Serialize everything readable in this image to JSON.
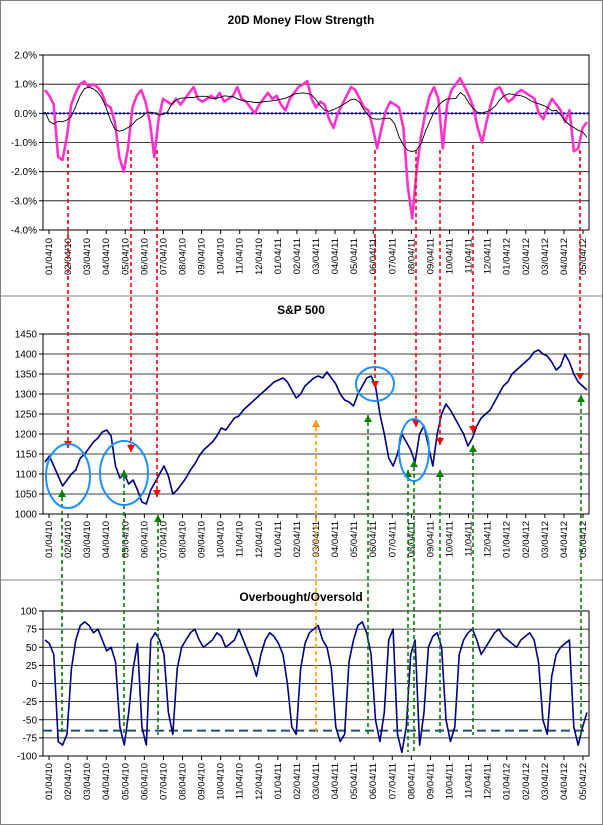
{
  "chart_data": [
    {
      "type": "line",
      "title": "20D Money Flow Strength",
      "ylim": [
        -4.0,
        2.0
      ],
      "y_ticks": [
        "2.0%",
        "1.0%",
        "0.0%",
        "-1.0%",
        "-2.0%",
        "-3.0%",
        "-4.0%"
      ],
      "x_ticks": [
        "01/04/10",
        "02/04/10",
        "03/04/10",
        "04/04/10",
        "05/04/10",
        "06/04/10",
        "07/04/10",
        "08/04/10",
        "09/04/10",
        "10/04/10",
        "11/04/10",
        "12/04/10",
        "01/04/11",
        "02/04/11",
        "03/04/11",
        "04/04/11",
        "05/04/11",
        "06/04/11",
        "07/04/11",
        "08/04/11",
        "09/04/11",
        "10/04/11",
        "11/04/11",
        "12/04/11",
        "01/04/12",
        "02/04/12",
        "03/04/12",
        "04/04/12",
        "05/04/12"
      ],
      "zero_line": 0.0,
      "series": [
        {
          "color": "#ff33cc",
          "values": [
            0.8,
            0.6,
            0.3,
            -1.5,
            -1.6,
            -0.8,
            0.3,
            0.7,
            1.0,
            1.1,
            0.9,
            1.0,
            0.9,
            0.7,
            0.3,
            0.2,
            -0.3,
            -1.5,
            -2.0,
            -1.2,
            0.2,
            0.6,
            0.8,
            0.4,
            -0.3,
            -1.5,
            -0.2,
            0.5,
            0.4,
            0.3,
            0.5,
            0.3,
            0.5,
            0.7,
            0.9,
            0.5,
            0.4,
            0.5,
            0.6,
            0.5,
            0.7,
            0.4,
            0.5,
            0.6,
            0.9,
            0.5,
            0.4,
            0.2,
            0.0,
            0.3,
            0.5,
            0.7,
            0.5,
            0.6,
            0.3,
            0.1,
            0.5,
            0.7,
            0.9,
            1.0,
            1.1,
            0.5,
            0.2,
            0.4,
            0.3,
            -0.2,
            -0.5,
            0.0,
            0.3,
            0.6,
            0.9,
            0.8,
            0.5,
            0.2,
            0.1,
            -0.5,
            -1.2,
            -0.5,
            0.1,
            0.4,
            0.3,
            0.2,
            -0.5,
            -2.5,
            -3.6,
            -2.0,
            -0.8,
            0.0,
            0.6,
            0.9,
            0.5,
            -1.2,
            0.3,
            0.8,
            1.0,
            1.2,
            0.9,
            0.6,
            0.2,
            -0.5,
            -1.0,
            -0.3,
            0.3,
            0.8,
            0.9,
            0.6,
            0.4,
            0.5,
            0.7,
            0.8,
            0.7,
            0.6,
            0.5,
            0.0,
            -0.2,
            0.2,
            0.5,
            0.3,
            0.1,
            -0.3,
            0.1,
            -1.3,
            -1.2,
            -0.5,
            -0.3
          ]
        }
      ]
    },
    {
      "type": "line",
      "title": "S&P 500",
      "ylim": [
        1000,
        1450
      ],
      "y_ticks": [
        "1450",
        "1400",
        "1350",
        "1300",
        "1250",
        "1200",
        "1150",
        "1100",
        "1050",
        "1000"
      ],
      "x_ticks": [
        "01/04/10",
        "02/04/10",
        "03/04/10",
        "04/04/10",
        "05/04/10",
        "06/04/10",
        "07/04/10",
        "08/04/10",
        "09/04/10",
        "10/04/10",
        "11/04/10",
        "12/04/10",
        "01/04/11",
        "02/04/11",
        "03/04/11",
        "04/04/11",
        "05/04/11",
        "06/04/11",
        "07/04/11",
        "08/04/11",
        "09/04/11",
        "10/04/11",
        "11/04/11",
        "12/04/11",
        "01/04/12",
        "02/04/12",
        "03/04/12",
        "04/04/12",
        "05/04/12"
      ],
      "series": [
        {
          "color": "#000080",
          "values": [
            1130,
            1145,
            1120,
            1095,
            1070,
            1085,
            1100,
            1110,
            1140,
            1150,
            1165,
            1180,
            1190,
            1205,
            1210,
            1195,
            1120,
            1090,
            1100,
            1075,
            1085,
            1060,
            1030,
            1025,
            1060,
            1080,
            1100,
            1120,
            1095,
            1050,
            1060,
            1075,
            1090,
            1110,
            1125,
            1145,
            1160,
            1170,
            1180,
            1195,
            1215,
            1210,
            1225,
            1240,
            1245,
            1260,
            1270,
            1280,
            1290,
            1300,
            1310,
            1320,
            1330,
            1335,
            1340,
            1330,
            1310,
            1290,
            1300,
            1320,
            1330,
            1340,
            1345,
            1340,
            1355,
            1340,
            1325,
            1300,
            1285,
            1280,
            1270,
            1300,
            1320,
            1340,
            1345,
            1320,
            1250,
            1200,
            1140,
            1120,
            1150,
            1200,
            1180,
            1160,
            1130,
            1200,
            1220,
            1170,
            1120,
            1200,
            1250,
            1275,
            1260,
            1240,
            1220,
            1200,
            1170,
            1190,
            1220,
            1240,
            1250,
            1260,
            1280,
            1300,
            1320,
            1330,
            1350,
            1360,
            1370,
            1380,
            1390,
            1405,
            1410,
            1400,
            1395,
            1380,
            1360,
            1370,
            1400,
            1380,
            1350,
            1330,
            1320,
            1310
          ]
        }
      ]
    },
    {
      "type": "line",
      "title": "Overbought/Oversold",
      "ylim": [
        -100,
        100
      ],
      "y_ticks": [
        "100",
        "75",
        "50",
        "25",
        "0",
        "-25",
        "-50",
        "-75",
        "-100"
      ],
      "x_ticks": [
        "01/04/10",
        "02/04/10",
        "03/04/10",
        "04/04/10",
        "05/04/10",
        "06/04/10",
        "07/04/10",
        "08/04/10",
        "09/04/10",
        "10/04/10",
        "11/04/10",
        "12/04/10",
        "01/04/11",
        "02/04/11",
        "03/04/11",
        "04/04/11",
        "05/04/11",
        "06/04/11",
        "07/04/11",
        "08/04/11",
        "09/04/11",
        "10/04/11",
        "11/04/11",
        "12/04/11",
        "01/04/12",
        "02/04/12",
        "03/04/12",
        "04/04/12",
        "05/04/12"
      ],
      "threshold": -65,
      "series": [
        {
          "color": "#000080",
          "values": [
            60,
            55,
            40,
            -80,
            -85,
            -70,
            20,
            60,
            80,
            85,
            80,
            70,
            75,
            60,
            45,
            50,
            30,
            -60,
            -85,
            -40,
            20,
            55,
            -60,
            -85,
            60,
            70,
            60,
            40,
            -40,
            -70,
            20,
            50,
            60,
            70,
            75,
            60,
            50,
            55,
            60,
            70,
            65,
            50,
            55,
            60,
            75,
            60,
            45,
            30,
            10,
            40,
            60,
            70,
            65,
            55,
            40,
            0,
            -60,
            -70,
            20,
            55,
            70,
            75,
            80,
            60,
            50,
            20,
            -60,
            -80,
            -70,
            30,
            60,
            80,
            85,
            70,
            40,
            -50,
            -80,
            -40,
            60,
            75,
            -70,
            -95,
            -60,
            40,
            60,
            -85,
            -40,
            50,
            65,
            70,
            50,
            -50,
            -80,
            -60,
            40,
            60,
            70,
            75,
            60,
            40,
            50,
            60,
            70,
            75,
            65,
            60,
            55,
            50,
            60,
            65,
            70,
            60,
            30,
            -50,
            -70,
            10,
            40,
            50,
            55,
            60,
            -60,
            -85,
            -60,
            -40
          ]
        }
      ]
    }
  ]
}
